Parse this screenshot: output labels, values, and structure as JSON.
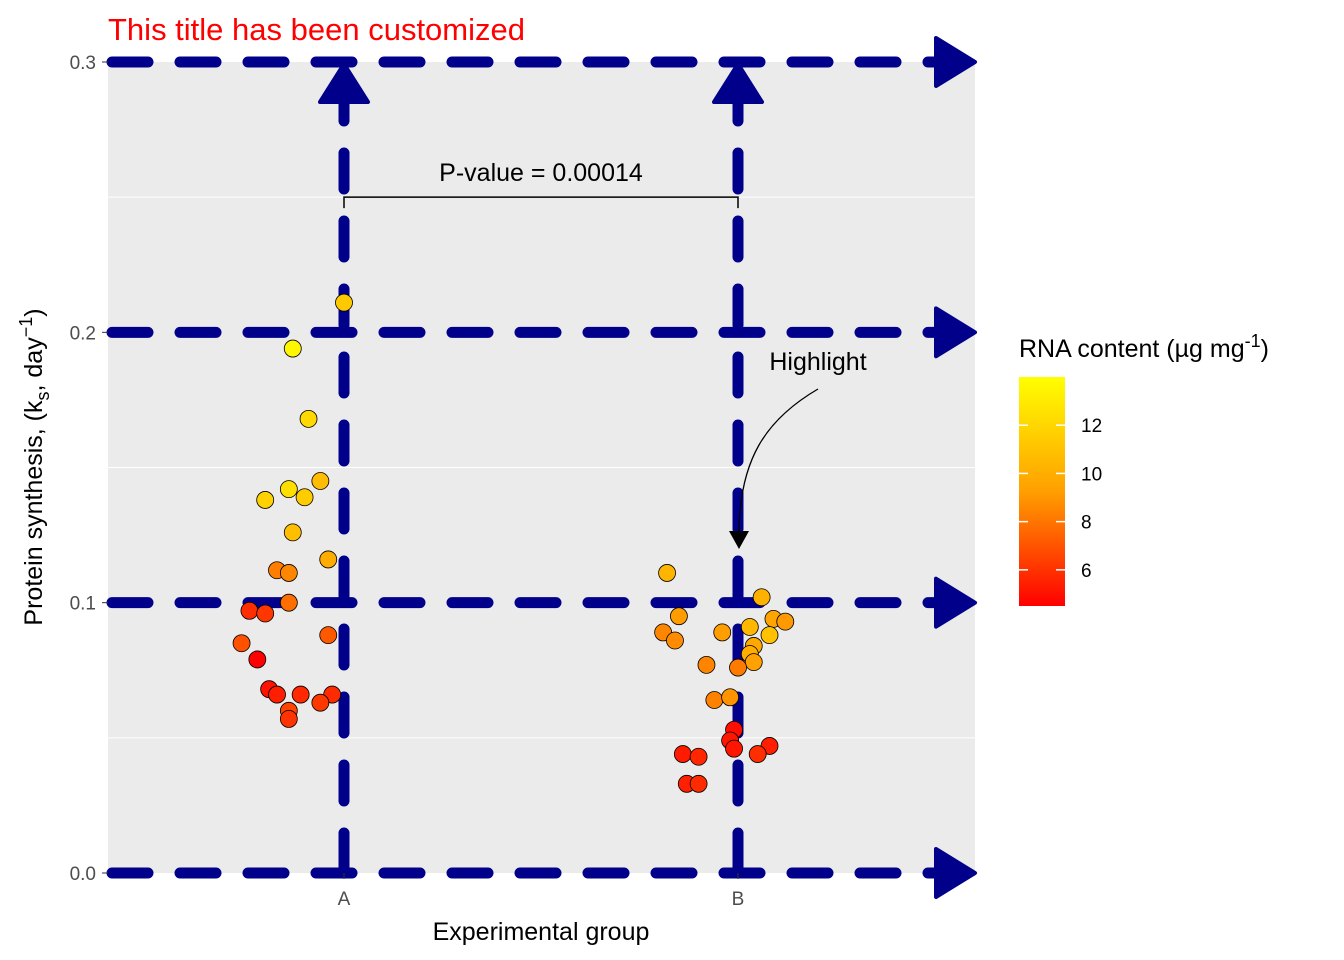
{
  "chart_data": {
    "type": "scatter",
    "title": "This title has been customized",
    "xlabel": "Experimental group",
    "ylabel_parts": [
      "Protein synthesis, (k",
      "s",
      ", day",
      "−1",
      ")"
    ],
    "categories": [
      "A",
      "B"
    ],
    "ylim": [
      0,
      0.3
    ],
    "yticks": [
      0.0,
      0.1,
      0.2,
      0.3
    ],
    "ytick_labels": [
      "0.0",
      "0.1",
      "0.2",
      "0.3"
    ],
    "grid": true,
    "legend": {
      "title_parts": [
        "RNA content (µg mg",
        "-1",
        ")"
      ],
      "position": "right",
      "range": [
        4.5,
        14
      ],
      "ticks": [
        6,
        8,
        10,
        12
      ],
      "tick_labels": [
        "6",
        "8",
        "10",
        "12"
      ],
      "colors": [
        "#ff0000",
        "#ffff00"
      ]
    },
    "annotations": {
      "pvalue": "P-value = 0.00014",
      "highlight": "Highlight"
    },
    "style": {
      "panel_bg": "#ebebeb",
      "major_grid_color": "#00008b",
      "title_color": "#ff0000"
    },
    "points": [
      {
        "group": "A",
        "x": 1.0,
        "y": 0.211,
        "rna": 12.0
      },
      {
        "group": "A",
        "x": 0.8,
        "y": 0.138,
        "rna": 12.3
      },
      {
        "group": "A",
        "x": 0.87,
        "y": 0.194,
        "rna": 13.7
      },
      {
        "group": "A",
        "x": 0.91,
        "y": 0.168,
        "rna": 12.6
      },
      {
        "group": "A",
        "x": 0.94,
        "y": 0.145,
        "rna": 11.5
      },
      {
        "group": "A",
        "x": 0.86,
        "y": 0.142,
        "rna": 12.8
      },
      {
        "group": "A",
        "x": 0.9,
        "y": 0.139,
        "rna": 12.1
      },
      {
        "group": "A",
        "x": 0.87,
        "y": 0.126,
        "rna": 11.6
      },
      {
        "group": "A",
        "x": 0.96,
        "y": 0.116,
        "rna": 10.9
      },
      {
        "group": "A",
        "x": 0.83,
        "y": 0.112,
        "rna": 9.2
      },
      {
        "group": "A",
        "x": 0.86,
        "y": 0.111,
        "rna": 9.5
      },
      {
        "group": "A",
        "x": 0.86,
        "y": 0.1,
        "rna": 8.6
      },
      {
        "group": "A",
        "x": 0.76,
        "y": 0.097,
        "rna": 6.2
      },
      {
        "group": "A",
        "x": 0.8,
        "y": 0.096,
        "rna": 6.5
      },
      {
        "group": "A",
        "x": 0.96,
        "y": 0.088,
        "rna": 7.8
      },
      {
        "group": "A",
        "x": 0.74,
        "y": 0.085,
        "rna": 7.5
      },
      {
        "group": "A",
        "x": 0.78,
        "y": 0.079,
        "rna": 4.5
      },
      {
        "group": "A",
        "x": 0.81,
        "y": 0.068,
        "rna": 5.2
      },
      {
        "group": "A",
        "x": 0.83,
        "y": 0.066,
        "rna": 5.6
      },
      {
        "group": "A",
        "x": 0.89,
        "y": 0.066,
        "rna": 6.0
      },
      {
        "group": "A",
        "x": 0.97,
        "y": 0.066,
        "rna": 6.1
      },
      {
        "group": "A",
        "x": 0.94,
        "y": 0.063,
        "rna": 6.6
      },
      {
        "group": "A",
        "x": 0.86,
        "y": 0.06,
        "rna": 7.0
      },
      {
        "group": "A",
        "x": 0.86,
        "y": 0.057,
        "rna": 6.4
      },
      {
        "group": "B",
        "x": 1.82,
        "y": 0.111,
        "rna": 11.2
      },
      {
        "group": "B",
        "x": 2.06,
        "y": 0.102,
        "rna": 11.1
      },
      {
        "group": "B",
        "x": 1.85,
        "y": 0.095,
        "rna": 10.3
      },
      {
        "group": "B",
        "x": 2.09,
        "y": 0.094,
        "rna": 10.6
      },
      {
        "group": "B",
        "x": 2.12,
        "y": 0.093,
        "rna": 10.2
      },
      {
        "group": "B",
        "x": 2.03,
        "y": 0.091,
        "rna": 11.3
      },
      {
        "group": "B",
        "x": 1.81,
        "y": 0.089,
        "rna": 9.5
      },
      {
        "group": "B",
        "x": 1.96,
        "y": 0.089,
        "rna": 10.4
      },
      {
        "group": "B",
        "x": 2.08,
        "y": 0.088,
        "rna": 11.7
      },
      {
        "group": "B",
        "x": 1.84,
        "y": 0.086,
        "rna": 9.7
      },
      {
        "group": "B",
        "x": 2.04,
        "y": 0.084,
        "rna": 10.8
      },
      {
        "group": "B",
        "x": 2.03,
        "y": 0.081,
        "rna": 11.0
      },
      {
        "group": "B",
        "x": 2.04,
        "y": 0.078,
        "rna": 10.5
      },
      {
        "group": "B",
        "x": 1.92,
        "y": 0.077,
        "rna": 9.4
      },
      {
        "group": "B",
        "x": 2.0,
        "y": 0.076,
        "rna": 9.1
      },
      {
        "group": "B",
        "x": 1.94,
        "y": 0.064,
        "rna": 9.3
      },
      {
        "group": "B",
        "x": 1.98,
        "y": 0.065,
        "rna": 10.0
      },
      {
        "group": "B",
        "x": 1.99,
        "y": 0.053,
        "rna": 5.0
      },
      {
        "group": "B",
        "x": 1.98,
        "y": 0.049,
        "rna": 5.4
      },
      {
        "group": "B",
        "x": 2.08,
        "y": 0.047,
        "rna": 5.6
      },
      {
        "group": "B",
        "x": 1.99,
        "y": 0.046,
        "rna": 5.3
      },
      {
        "group": "B",
        "x": 1.86,
        "y": 0.044,
        "rna": 5.5
      },
      {
        "group": "B",
        "x": 1.9,
        "y": 0.043,
        "rna": 5.9
      },
      {
        "group": "B",
        "x": 2.05,
        "y": 0.044,
        "rna": 6.2
      },
      {
        "group": "B",
        "x": 1.87,
        "y": 0.033,
        "rna": 5.7
      },
      {
        "group": "B",
        "x": 1.9,
        "y": 0.033,
        "rna": 6.1
      }
    ]
  }
}
